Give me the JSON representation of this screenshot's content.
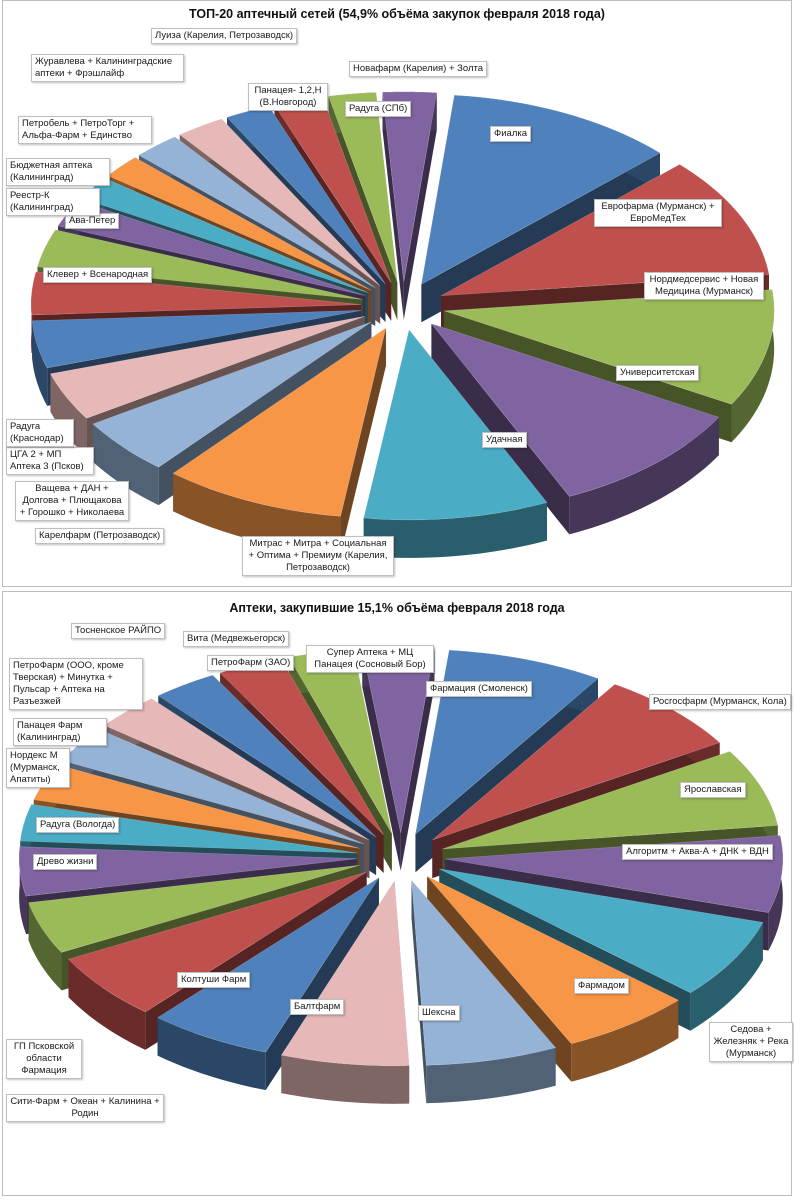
{
  "charts": [
    {
      "title": "ТОП-20 аптечный сетей (54,9% объёма закупок февраля 2018 года)"
    },
    {
      "title": "Аптеки, закупившие 15,1% объёма февраля 2018 года"
    }
  ],
  "palette": [
    "#4f81bd",
    "#c0504d",
    "#9bbb59",
    "#8064a2",
    "#4bacc6",
    "#f79646",
    "#95b3d7",
    "#e6b9b8"
  ],
  "chart_data": [
    {
      "type": "pie",
      "title": "ТОП-20 аптечный сетей (54,9% объёма закупок февраля 2018 года)",
      "labels": [
        "Фиалка",
        "Еврофарма (Мурманск) + ЕвроМедТех",
        "Нордмедсервис + Новая Медицина (Мурманск)",
        "Университетская",
        "Удачная",
        "Митрас + Митра + Социальная + Оптима + Премиум (Карелия, Петрозаводск)",
        "Карелфарм (Петрозаводск)",
        "Ващева + ДАН + Долгова + Плющакова + Горошко + Николаева",
        "ЦГА 2 + МП Аптека 3 (Псков)",
        "Радуга (Краснодар)",
        "Клевер + Всенародная",
        "Ава-Петер",
        "Реестр-К (Калининград)",
        "Бюджетная аптека (Калининград)",
        "Петробель + ПетроТорг + Альфа-Фарм + Единство",
        "Журавлева + Калининградские аптеки + Фрэшлайф",
        "Луиза (Карелия, Петрозаводск)",
        "Панацея- 1,2,Н (В.Новгород)",
        "Новафарм (Карелия) + Золта",
        "Радуга (СПб)"
      ],
      "values": [
        11.2,
        10.3,
        9.9,
        9.9,
        9.0,
        8.9,
        4.8,
        4.1,
        4.0,
        3.6,
        3.2,
        2.3,
        2.0,
        2.0,
        2.3,
        2.4,
        2.2,
        2.4,
        2.3,
        2.6
      ]
    },
    {
      "type": "pie",
      "title": "Аптеки, закупившие 15,1% объёма февраля 2018 года",
      "labels": [
        "Фармация (Смоленск)",
        "Росгосфарм (Мурманск, Кола)",
        "Ярославская",
        "Алгоритм + Аква-А + ДНК + ВДН",
        "Седова + Железняк + Река (Мурманск)",
        "Фармадом",
        "Шексна",
        "Балтфарм",
        "Колтуши Фарм",
        "Сити-Фарм + Океан + Калинина + Родин",
        "ГП Псковской области Фармация",
        "Древо жизни",
        "Радуга (Вологда)",
        "Нордекс М (Мурманск, Апатиты)",
        "Панацея Фарм (Калининград)",
        "ПетроФарм (ООО, кроме Тверская) + Минутка + Пульсар + Аптека на Разъезжей",
        "Тосненское РАЙПО",
        "ПетроФарм (ЗАО)",
        "Вита (Медвежьегорск)",
        "Супер Аптека + МЦ Панацея (Сосновый Бор)"
      ],
      "values": [
        7.7,
        7.3,
        7.0,
        6.9,
        7.2,
        6.5,
        6.5,
        6.3,
        6.1,
        6.0,
        4.7,
        4.4,
        3.3,
        3.3,
        3.3,
        3.3,
        3.2,
        3.2,
        3.2,
        3.5
      ]
    }
  ]
}
